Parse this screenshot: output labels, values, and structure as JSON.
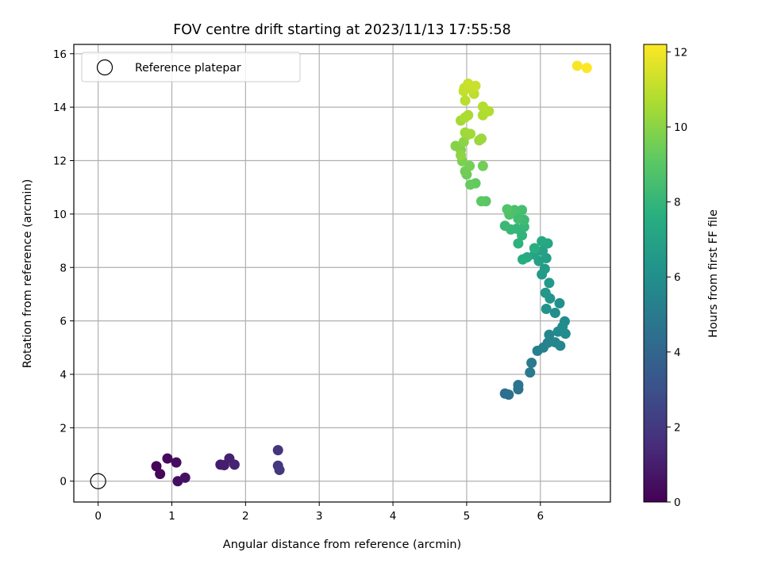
{
  "chart_data": {
    "type": "scatter",
    "title": "FOV centre drift starting at 2023/11/13 17:55:58",
    "xlabel": "Angular distance from reference (arcmin)",
    "ylabel": "Rotation from reference (arcmin)",
    "xlim": [
      -0.33,
      6.95
    ],
    "ylim": [
      -0.78,
      16.35
    ],
    "xticks": [
      0,
      1,
      2,
      3,
      4,
      5,
      6
    ],
    "yticks": [
      0,
      2,
      4,
      6,
      8,
      10,
      12,
      14,
      16
    ],
    "grid": true,
    "legend": {
      "position": "top-left",
      "entries": [
        "Reference platepar"
      ]
    },
    "reference_point": {
      "x": 0,
      "y": 0,
      "label": "Reference platepar"
    },
    "colorbar": {
      "label": "Hours from first FF file",
      "range": [
        0,
        12.2
      ],
      "ticks": [
        0,
        2,
        4,
        6,
        8,
        10,
        12
      ],
      "colormap": "viridis"
    },
    "points": [
      {
        "x": 0.79,
        "y": 0.56,
        "c": 0.1
      },
      {
        "x": 0.84,
        "y": 0.27,
        "c": 0.2
      },
      {
        "x": 0.94,
        "y": 0.85,
        "c": 0.3
      },
      {
        "x": 1.06,
        "y": 0.7,
        "c": 0.4
      },
      {
        "x": 1.08,
        "y": 0.0,
        "c": 0.5
      },
      {
        "x": 1.18,
        "y": 0.13,
        "c": 0.6
      },
      {
        "x": 1.66,
        "y": 0.62,
        "c": 0.9
      },
      {
        "x": 1.71,
        "y": 0.6,
        "c": 1.0
      },
      {
        "x": 1.78,
        "y": 0.85,
        "c": 1.1
      },
      {
        "x": 1.85,
        "y": 0.62,
        "c": 1.2
      },
      {
        "x": 2.44,
        "y": 1.16,
        "c": 1.8
      },
      {
        "x": 2.44,
        "y": 0.58,
        "c": 1.9
      },
      {
        "x": 2.46,
        "y": 0.42,
        "c": 2.0
      },
      {
        "x": 5.52,
        "y": 3.28,
        "c": 4.4
      },
      {
        "x": 5.57,
        "y": 3.24,
        "c": 4.5
      },
      {
        "x": 5.7,
        "y": 3.44,
        "c": 4.6
      },
      {
        "x": 5.7,
        "y": 3.6,
        "c": 4.7
      },
      {
        "x": 5.86,
        "y": 4.07,
        "c": 4.9
      },
      {
        "x": 5.88,
        "y": 4.43,
        "c": 5.0
      },
      {
        "x": 5.96,
        "y": 4.88,
        "c": 5.2
      },
      {
        "x": 6.04,
        "y": 5.0,
        "c": 5.3
      },
      {
        "x": 6.1,
        "y": 5.18,
        "c": 5.4
      },
      {
        "x": 6.12,
        "y": 5.48,
        "c": 5.5
      },
      {
        "x": 6.2,
        "y": 5.2,
        "c": 5.55
      },
      {
        "x": 6.27,
        "y": 5.07,
        "c": 5.6
      },
      {
        "x": 6.24,
        "y": 5.6,
        "c": 5.7
      },
      {
        "x": 6.33,
        "y": 5.98,
        "c": 5.8
      },
      {
        "x": 6.34,
        "y": 5.52,
        "c": 5.85
      },
      {
        "x": 6.3,
        "y": 5.78,
        "c": 5.9
      },
      {
        "x": 6.2,
        "y": 6.3,
        "c": 6.0
      },
      {
        "x": 6.26,
        "y": 6.66,
        "c": 6.1
      },
      {
        "x": 6.08,
        "y": 6.45,
        "c": 6.2
      },
      {
        "x": 6.13,
        "y": 6.84,
        "c": 6.3
      },
      {
        "x": 6.07,
        "y": 7.05,
        "c": 6.4
      },
      {
        "x": 6.12,
        "y": 7.42,
        "c": 6.5
      },
      {
        "x": 6.02,
        "y": 7.74,
        "c": 6.6
      },
      {
        "x": 6.06,
        "y": 7.95,
        "c": 6.7
      },
      {
        "x": 6.08,
        "y": 8.35,
        "c": 6.8
      },
      {
        "x": 5.98,
        "y": 8.24,
        "c": 6.9
      },
      {
        "x": 6.03,
        "y": 8.62,
        "c": 7.0
      },
      {
        "x": 5.92,
        "y": 8.48,
        "c": 7.1
      },
      {
        "x": 6.1,
        "y": 8.9,
        "c": 7.2
      },
      {
        "x": 6.02,
        "y": 8.98,
        "c": 7.3
      },
      {
        "x": 5.82,
        "y": 8.38,
        "c": 7.4
      },
      {
        "x": 5.76,
        "y": 8.3,
        "c": 7.5
      },
      {
        "x": 5.92,
        "y": 8.72,
        "c": 7.6
      },
      {
        "x": 5.7,
        "y": 8.9,
        "c": 7.8
      },
      {
        "x": 5.75,
        "y": 9.2,
        "c": 7.9
      },
      {
        "x": 5.68,
        "y": 9.45,
        "c": 8.0
      },
      {
        "x": 5.78,
        "y": 9.52,
        "c": 8.05
      },
      {
        "x": 5.6,
        "y": 9.42,
        "c": 8.1
      },
      {
        "x": 5.52,
        "y": 9.56,
        "c": 8.2
      },
      {
        "x": 5.78,
        "y": 9.78,
        "c": 8.3
      },
      {
        "x": 5.7,
        "y": 9.82,
        "c": 8.4
      },
      {
        "x": 5.75,
        "y": 10.15,
        "c": 8.5
      },
      {
        "x": 5.65,
        "y": 10.15,
        "c": 8.6
      },
      {
        "x": 5.58,
        "y": 9.98,
        "c": 8.7
      },
      {
        "x": 5.55,
        "y": 10.18,
        "c": 8.8
      },
      {
        "x": 5.26,
        "y": 10.48,
        "c": 9.0
      },
      {
        "x": 5.2,
        "y": 10.48,
        "c": 9.1
      },
      {
        "x": 5.12,
        "y": 11.15,
        "c": 9.2
      },
      {
        "x": 5.05,
        "y": 11.1,
        "c": 9.3
      },
      {
        "x": 5.0,
        "y": 11.48,
        "c": 9.4
      },
      {
        "x": 4.98,
        "y": 11.6,
        "c": 9.5
      },
      {
        "x": 5.04,
        "y": 11.8,
        "c": 9.6
      },
      {
        "x": 5.22,
        "y": 11.8,
        "c": 9.55
      },
      {
        "x": 4.94,
        "y": 11.98,
        "c": 9.7
      },
      {
        "x": 4.92,
        "y": 12.4,
        "c": 9.8
      },
      {
        "x": 4.85,
        "y": 12.55,
        "c": 9.9
      },
      {
        "x": 4.96,
        "y": 12.7,
        "c": 10.0
      },
      {
        "x": 4.92,
        "y": 12.2,
        "c": 10.1
      },
      {
        "x": 5.0,
        "y": 12.95,
        "c": 10.2
      },
      {
        "x": 5.17,
        "y": 12.76,
        "c": 10.3
      },
      {
        "x": 5.2,
        "y": 12.82,
        "c": 10.35
      },
      {
        "x": 4.98,
        "y": 13.05,
        "c": 10.4
      },
      {
        "x": 5.05,
        "y": 13.0,
        "c": 10.45
      },
      {
        "x": 4.92,
        "y": 13.5,
        "c": 10.5
      },
      {
        "x": 5.02,
        "y": 13.7,
        "c": 10.6
      },
      {
        "x": 4.98,
        "y": 13.62,
        "c": 10.65
      },
      {
        "x": 5.22,
        "y": 13.7,
        "c": 10.7
      },
      {
        "x": 5.3,
        "y": 13.85,
        "c": 10.75
      },
      {
        "x": 5.22,
        "y": 14.02,
        "c": 10.8
      },
      {
        "x": 4.98,
        "y": 14.25,
        "c": 10.9
      },
      {
        "x": 5.1,
        "y": 14.5,
        "c": 11.0
      },
      {
        "x": 4.96,
        "y": 14.6,
        "c": 11.05
      },
      {
        "x": 5.06,
        "y": 14.7,
        "c": 11.1
      },
      {
        "x": 4.97,
        "y": 14.72,
        "c": 11.15
      },
      {
        "x": 5.02,
        "y": 14.88,
        "c": 11.2
      },
      {
        "x": 5.12,
        "y": 14.8,
        "c": 11.25
      },
      {
        "x": 6.5,
        "y": 15.55,
        "c": 12.1
      },
      {
        "x": 6.63,
        "y": 15.47,
        "c": 12.2
      }
    ]
  }
}
